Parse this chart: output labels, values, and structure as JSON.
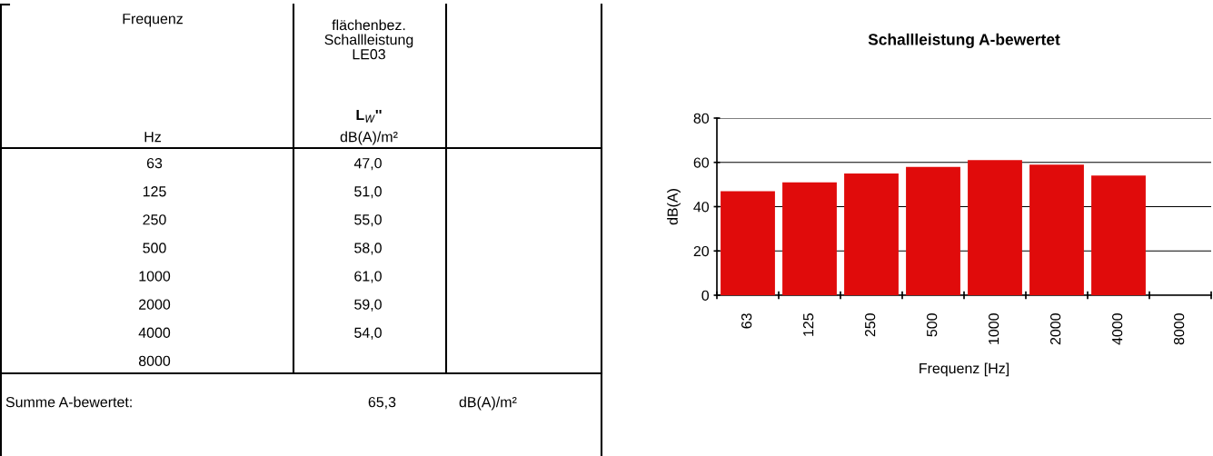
{
  "chart_data": {
    "type": "bar",
    "title": "Schallleistung A-bewertet",
    "xlabel": "Frequenz [Hz]",
    "ylabel": "dB(A)",
    "categories": [
      "63",
      "125",
      "250",
      "500",
      "1000",
      "2000",
      "4000",
      "8000"
    ],
    "values": [
      47,
      51,
      55,
      58,
      61,
      59,
      54,
      null
    ],
    "color": "#e00b0b",
    "ylim": [
      0,
      80
    ],
    "yticks": [
      0,
      20,
      40,
      60,
      80
    ],
    "grid": "y",
    "annotations": [
      "Frequenz",
      "Hz",
      "flächenbez.\nSchallleistung\nLE03",
      "L$_{W}$''",
      "dB(A)/m²",
      "Summe A-bewertet:",
      "65,3",
      "dB(A)/m²",
      "47,0",
      "51,0",
      "55,0",
      "58,0",
      "61,0",
      "59,0",
      "54,0"
    ]
  }
}
